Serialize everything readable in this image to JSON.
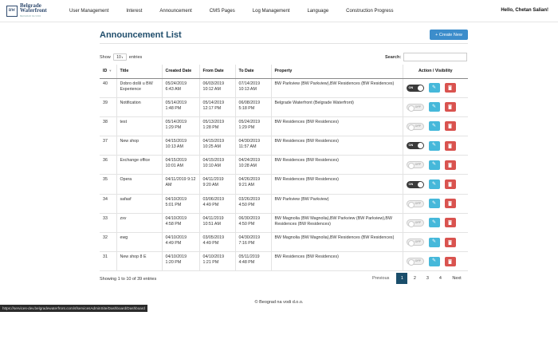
{
  "nav": {
    "logo_mark": "BW",
    "logo_line1": "Belgrade",
    "logo_line2": "Waterfront",
    "logo_sub": "BEOGRAD NA VODI",
    "items": [
      {
        "label": "User Management"
      },
      {
        "label": "Interest"
      },
      {
        "label": "Announcement"
      },
      {
        "label": "CMS Pages"
      },
      {
        "label": "Log Management"
      },
      {
        "label": "Language"
      },
      {
        "label": "Construction Progress"
      }
    ],
    "user": "Hello, Chetan Salian!"
  },
  "page": {
    "title": "Announcement List",
    "create_label": "+ Create New",
    "show_label": "Show",
    "show_value": "10",
    "entries_label": "entries",
    "search_label": "Search:",
    "search_value": ""
  },
  "table": {
    "headers": {
      "id": "ID",
      "title": "Title",
      "created": "Created Date",
      "from": "From Date",
      "to": "To Date",
      "property": "Property",
      "action": "Action / Visibility"
    },
    "rows": [
      {
        "id": "40",
        "title": "Dobro došli u BW Experience",
        "created": "05/24/2019 6:43 AM",
        "from": "06/03/2019 10:12 AM",
        "to": "07/14/2019 10:13 AM",
        "property": "BW Parkview (BW Parkview),BW Residences (BW Residences)",
        "toggle": "ON"
      },
      {
        "id": "39",
        "title": "Notification",
        "created": "05/14/2019 1:48 PM",
        "from": "05/14/2019 12:17 PM",
        "to": "06/08/2019 5:18 PM",
        "property": "Belgrade Waterfront (Belgrade Waterfront)",
        "toggle": "OFF"
      },
      {
        "id": "38",
        "title": "test",
        "created": "05/14/2019 1:29 PM",
        "from": "05/13/2019 1:28 PM",
        "to": "05/24/2019 1:29 PM",
        "property": "BW Residences (BW Residences)",
        "toggle": "OFF"
      },
      {
        "id": "37",
        "title": "New shop",
        "created": "04/15/2019 10:13 AM",
        "from": "04/15/2019 10:25 AM",
        "to": "04/30/2019 11:57 AM",
        "property": "BW Residences (BW Residences)",
        "toggle": "ON"
      },
      {
        "id": "36",
        "title": "Exchange office",
        "created": "04/15/2019 10:01 AM",
        "from": "04/15/2019 10:10 AM",
        "to": "04/24/2019 10:28 AM",
        "property": "BW Residences (BW Residences)",
        "toggle": "OFF"
      },
      {
        "id": "35",
        "title": "Opera",
        "created": "04/11/2019 9:12 AM",
        "from": "04/11/2019 9:20 AM",
        "to": "04/26/2019 9:21 AM",
        "property": "BW Residences (BW Residences)",
        "toggle": "ON"
      },
      {
        "id": "34",
        "title": "safasf",
        "created": "04/10/2019 5:01 PM",
        "from": "03/06/2019 4:49 PM",
        "to": "03/26/2019 4:50 PM",
        "property": "BW Parkview (BW Parkview)",
        "toggle": "OFF"
      },
      {
        "id": "33",
        "title": "zxv",
        "created": "04/10/2019 4:58 PM",
        "from": "04/11/2019 10:51 AM",
        "to": "06/30/2019 4:50 PM",
        "property": "BW Magnolia (BW Magnolia),BW Parkview (BW Parkview),BW Residences (BW Residences)",
        "toggle": "OFF"
      },
      {
        "id": "32",
        "title": "ewg",
        "created": "04/10/2019 4:49 PM",
        "from": "03/05/2019 4:49 PM",
        "to": "04/30/2019 7:16 PM",
        "property": "BW Magnolia (BW Magnolia),BW Residences (BW Residences)",
        "toggle": "OFF"
      },
      {
        "id": "31",
        "title": "New shop 8 E",
        "created": "04/10/2019 1:20 PM",
        "from": "04/10/2019 1:21 PM",
        "to": "05/11/2019 4:48 PM",
        "property": "BW Residences (BW Residences)",
        "toggle": "OFF"
      }
    ]
  },
  "pagination": {
    "info": "Showing 1 to 10 of 39 entries",
    "prev": "Previous",
    "pages": [
      "1",
      "2",
      "3",
      "4"
    ],
    "active": "1",
    "next": "Next"
  },
  "footer": {
    "text": "© Beograd na vodi d.o.o."
  },
  "status_url": "https://services-dev.belgradewaterfront.com/sfservicesAdminSite/Dashboard/Dashboard",
  "icons": {
    "edit": "pencil-icon",
    "delete": "trash-icon",
    "sort": "sort-desc-icon"
  },
  "colors": {
    "primary": "#3c8dcb",
    "edit": "#46b8da",
    "delete": "#d9534f",
    "active_page": "#1a4e6b",
    "heading": "#1f4d6b"
  }
}
